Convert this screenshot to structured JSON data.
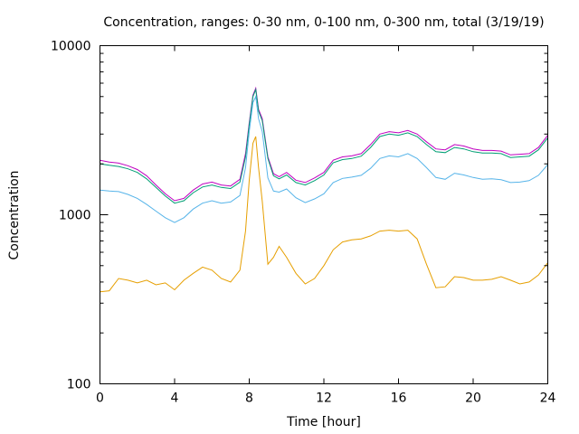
{
  "chart_data": {
    "type": "line",
    "title": "Concentration, ranges: 0-30 nm, 0-100 nm, 0-300 nm, total (3/19/19)",
    "xlabel": "Time [hour]",
    "ylabel": "Concentration",
    "xlim": [
      0,
      24
    ],
    "ylim": [
      100,
      10000
    ],
    "yscale": "log",
    "grid": false,
    "legend": "none",
    "x_ticks": [
      "0",
      "4",
      "8",
      "12",
      "16",
      "20",
      "24"
    ],
    "y_ticks": [
      "100",
      "1000",
      "10000"
    ],
    "x": [
      0,
      0.5,
      1,
      1.5,
      2,
      2.5,
      3,
      3.5,
      4,
      4.5,
      5,
      5.5,
      6,
      6.5,
      7,
      7.5,
      7.8,
      8,
      8.2,
      8.35,
      8.5,
      8.7,
      9,
      9.3,
      9.6,
      10,
      10.5,
      11,
      11.5,
      12,
      12.5,
      13,
      13.5,
      14,
      14.5,
      15,
      15.5,
      16,
      16.5,
      17,
      17.5,
      18,
      18.5,
      19,
      19.5,
      20,
      20.5,
      21,
      21.5,
      22,
      22.5,
      23,
      23.5,
      24
    ],
    "series": [
      {
        "color": "#c000c0",
        "values": [
          2100,
          2050,
          2020,
          1950,
          1850,
          1700,
          1500,
          1330,
          1210,
          1250,
          1400,
          1520,
          1560,
          1500,
          1480,
          1620,
          2300,
          3500,
          5100,
          5600,
          4200,
          3700,
          2200,
          1750,
          1680,
          1780,
          1600,
          1550,
          1650,
          1780,
          2100,
          2200,
          2230,
          2300,
          2600,
          3000,
          3100,
          3050,
          3150,
          3000,
          2700,
          2450,
          2420,
          2600,
          2550,
          2450,
          2400,
          2400,
          2380,
          2260,
          2280,
          2300,
          2500,
          2950
        ]
      },
      {
        "color": "#009e73",
        "values": [
          2000,
          1960,
          1930,
          1870,
          1780,
          1630,
          1450,
          1290,
          1170,
          1210,
          1350,
          1460,
          1500,
          1450,
          1430,
          1560,
          2200,
          3400,
          5000,
          5500,
          4100,
          3600,
          2150,
          1700,
          1630,
          1720,
          1550,
          1500,
          1590,
          1720,
          2030,
          2120,
          2150,
          2220,
          2500,
          2900,
          3000,
          2950,
          3050,
          2900,
          2600,
          2360,
          2330,
          2500,
          2450,
          2360,
          2320,
          2320,
          2300,
          2180,
          2200,
          2220,
          2420,
          2850
        ]
      },
      {
        "color": "#56b4e9",
        "values": [
          1400,
          1380,
          1370,
          1320,
          1250,
          1150,
          1050,
          960,
          900,
          960,
          1080,
          1170,
          1210,
          1170,
          1190,
          1300,
          1900,
          3100,
          4600,
          5000,
          3700,
          3100,
          1650,
          1380,
          1360,
          1420,
          1260,
          1180,
          1240,
          1330,
          1550,
          1640,
          1670,
          1710,
          1880,
          2150,
          2230,
          2200,
          2300,
          2150,
          1900,
          1660,
          1620,
          1760,
          1720,
          1660,
          1620,
          1630,
          1610,
          1550,
          1560,
          1590,
          1710,
          1980
        ]
      },
      {
        "color": "#e69f00",
        "values": [
          350,
          355,
          420,
          410,
          395,
          410,
          385,
          395,
          360,
          410,
          450,
          490,
          470,
          420,
          400,
          470,
          800,
          1600,
          2650,
          2900,
          1900,
          1200,
          510,
          560,
          650,
          560,
          450,
          390,
          420,
          500,
          620,
          690,
          710,
          720,
          750,
          800,
          810,
          800,
          810,
          720,
          510,
          370,
          375,
          430,
          425,
          410,
          410,
          415,
          430,
          410,
          390,
          400,
          440,
          520
        ]
      }
    ]
  }
}
